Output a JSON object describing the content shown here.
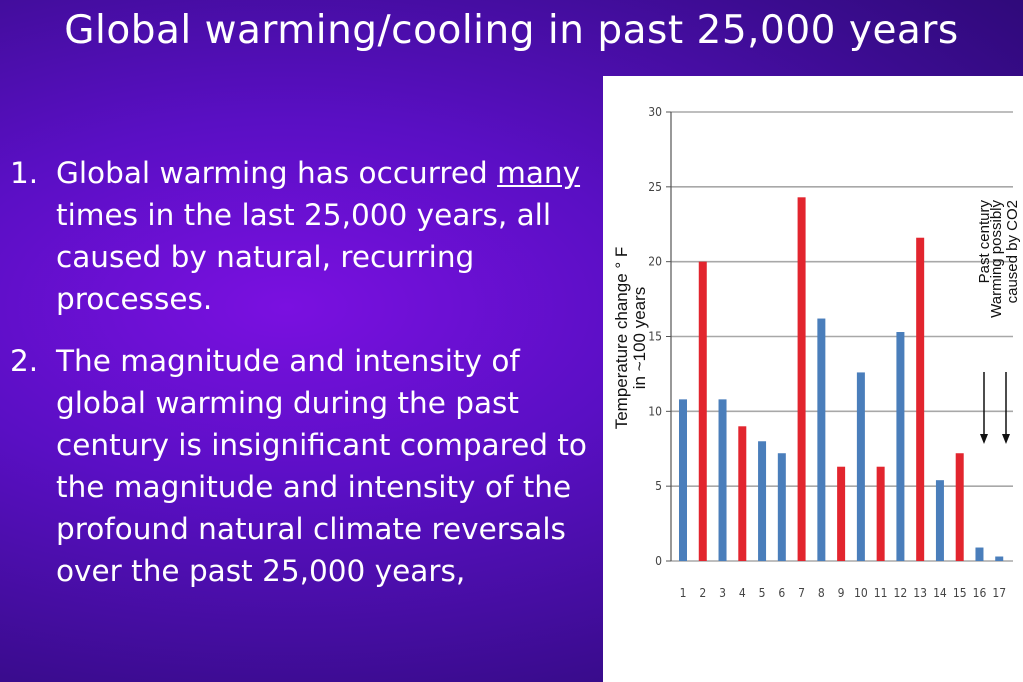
{
  "slide": {
    "title": "Global warming/cooling in past 25,000 years",
    "bullets": [
      {
        "number": "1.",
        "parts": [
          {
            "text": "Global warming has occurred ",
            "underline": false
          },
          {
            "text": "many",
            "underline": true
          },
          {
            "text": " times in the last 25,000 years, all caused by natural, recurring processes.",
            "underline": false
          }
        ]
      },
      {
        "number": "2.",
        "parts": [
          {
            "text": "The magnitude and intensity of global warming during the past century is insignificant compared to the magnitude and intensity of the profound natural climate reversals over the past 25,000 years,",
            "underline": false
          }
        ]
      }
    ]
  },
  "chart_data": {
    "type": "bar",
    "categories": [
      "1",
      "2",
      "3",
      "4",
      "5",
      "6",
      "7",
      "8",
      "9",
      "10",
      "11",
      "12",
      "13",
      "14",
      "15",
      "16",
      "17"
    ],
    "values": [
      10.8,
      20.0,
      10.8,
      9.0,
      8.0,
      7.2,
      24.3,
      16.2,
      6.3,
      12.6,
      6.3,
      15.3,
      21.6,
      5.4,
      7.2,
      0.9,
      0.3
    ],
    "bar_colors": [
      "#4a7ebb",
      "#e2252e",
      "#4a7ebb",
      "#e2252e",
      "#4a7ebb",
      "#4a7ebb",
      "#e2252e",
      "#4a7ebb",
      "#e2252e",
      "#4a7ebb",
      "#e2252e",
      "#4a7ebb",
      "#e2252e",
      "#4a7ebb",
      "#e2252e",
      "#4a7ebb",
      "#4a7ebb"
    ],
    "ylim": [
      0,
      30
    ],
    "yticks": [
      0,
      5,
      10,
      15,
      20,
      25,
      30
    ],
    "ylabel_lines": [
      "Temperature change ° F",
      "in ~100 years"
    ],
    "annotations": [
      {
        "lines": [
          "Past century"
        ],
        "at_category": "16"
      },
      {
        "lines": [
          "Warming possibly",
          "caused by CO2"
        ],
        "at_category": "17"
      }
    ],
    "grid": true
  }
}
